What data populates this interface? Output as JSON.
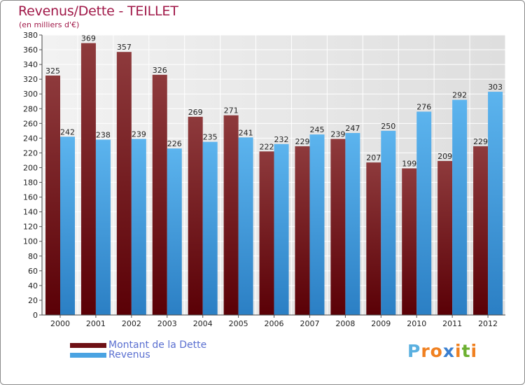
{
  "title": "Revenus/Dette - TEILLET",
  "subtitle": "(en milliers d'€)",
  "logo": [
    "P",
    "r",
    "o",
    "x",
    "i",
    "t",
    "i"
  ],
  "colors": {
    "debt": "#6e1015",
    "revenue": "#4aa3e2",
    "title": "#a01848",
    "logo": [
      "#5ab0e0",
      "#f08020",
      "#f08020",
      "#3a7fd0",
      "#f08020",
      "#6cb030",
      "#f08020"
    ]
  },
  "legend": [
    {
      "label": "Montant de la Dette",
      "color": "#6e1015"
    },
    {
      "label": "Revenus",
      "color": "#4aa3e2"
    }
  ],
  "chart_data": {
    "type": "bar",
    "title": "Revenus/Dette - TEILLET",
    "ylabel": "(en milliers d'€)",
    "categories": [
      "2000",
      "2001",
      "2002",
      "2003",
      "2004",
      "2005",
      "2006",
      "2007",
      "2008",
      "2009",
      "2010",
      "2011",
      "2012"
    ],
    "series": [
      {
        "name": "Montant de la Dette",
        "values": [
          325,
          369,
          357,
          326,
          269,
          271,
          222,
          229,
          239,
          207,
          199,
          209,
          229
        ]
      },
      {
        "name": "Revenus",
        "values": [
          242,
          238,
          239,
          226,
          235,
          241,
          232,
          245,
          247,
          250,
          276,
          292,
          303
        ]
      }
    ],
    "ylim": [
      0,
      380
    ],
    "ytick_step": 20,
    "grid": true
  }
}
